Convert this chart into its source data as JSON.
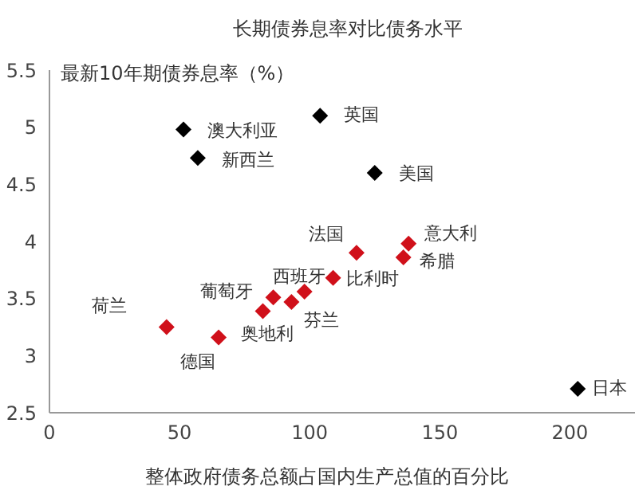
{
  "chart_data": {
    "type": "scatter",
    "title": "长期债券息率对比债务水平",
    "xlabel": "整体政府债务总额占国内生产总值的百分比",
    "ylabel": "最新10年期债券息率（%）",
    "series": [
      {
        "color": "#000000",
        "x": [
          51.5,
          57,
          104,
          125,
          203
        ],
        "values": [
          4.98,
          4.73,
          5.1,
          4.6,
          2.71
        ]
      },
      {
        "color": "#d0101a",
        "x": [
          118,
          138,
          136,
          109,
          98,
          93,
          86,
          82,
          45,
          65
        ],
        "values": [
          3.9,
          3.98,
          3.86,
          3.68,
          3.56,
          3.47,
          3.51,
          3.39,
          3.25,
          3.16
        ]
      }
    ],
    "annotations": [
      {
        "text": "澳大利亚",
        "x": 51.5,
        "y": 4.98
      },
      {
        "text": "新西兰",
        "x": 57,
        "y": 4.73
      },
      {
        "text": "英国",
        "x": 104,
        "y": 5.1
      },
      {
        "text": "美国",
        "x": 125,
        "y": 4.6
      },
      {
        "text": "日本",
        "x": 203,
        "y": 2.71
      },
      {
        "text": "法国",
        "x": 118,
        "y": 3.9
      },
      {
        "text": "意大利",
        "x": 138,
        "y": 3.98
      },
      {
        "text": "希腊",
        "x": 136,
        "y": 3.86
      },
      {
        "text": "比利时",
        "x": 109,
        "y": 3.68
      },
      {
        "text": "西班牙",
        "x": 98,
        "y": 3.56
      },
      {
        "text": "芬兰",
        "x": 93,
        "y": 3.47
      },
      {
        "text": "葡萄牙",
        "x": 86,
        "y": 3.51
      },
      {
        "text": "奥地利",
        "x": 82,
        "y": 3.39
      },
      {
        "text": "荷兰",
        "x": 45,
        "y": 3.25
      },
      {
        "text": "德国",
        "x": 65,
        "y": 3.16
      }
    ],
    "xlim": [
      0,
      225
    ],
    "xticks": [
      0,
      50,
      100,
      150,
      200
    ],
    "ylim": [
      2.5,
      5.5
    ],
    "yticks": [
      2.5,
      3,
      3.5,
      4,
      4.5,
      5,
      5.5
    ],
    "grid": false,
    "legend": false,
    "marker": "diamond"
  }
}
